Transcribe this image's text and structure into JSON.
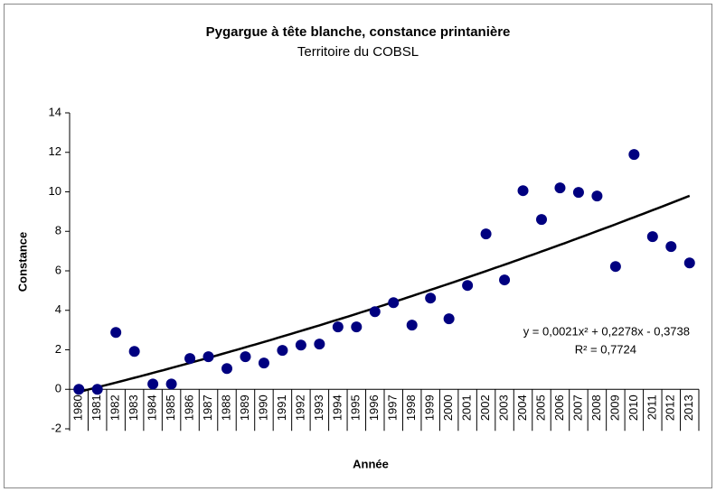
{
  "chart_data": {
    "type": "scatter",
    "title": "Pygargue à tête blanche, constance printanière",
    "subtitle": "Territoire du COBSL",
    "x_label": "Année",
    "y_label": "Constance",
    "categories": [
      "1980",
      "1981",
      "1982",
      "1983",
      "1984",
      "1985",
      "1986",
      "1987",
      "1988",
      "1989",
      "1990",
      "1991",
      "1992",
      "1993",
      "1994",
      "1995",
      "1996",
      "1997",
      "1998",
      "1999",
      "2000",
      "2001",
      "2002",
      "2003",
      "2004",
      "2005",
      "2006",
      "2007",
      "2008",
      "2009",
      "2010",
      "2011",
      "2012",
      "2013"
    ],
    "values": [
      0,
      0,
      2.88,
      1.92,
      0.27,
      0.27,
      1.56,
      1.65,
      1.05,
      1.65,
      1.33,
      1.97,
      2.24,
      2.29,
      3.16,
      3.16,
      3.93,
      4.39,
      3.25,
      4.62,
      3.57,
      5.26,
      7.87,
      5.54,
      10.06,
      8.6,
      10.2,
      9.97,
      9.79,
      6.22,
      11.89,
      7.73,
      7.23,
      6.4
    ],
    "color": "#000080",
    "ylim": [
      -2,
      14
    ],
    "yticks": [
      -2,
      0,
      2,
      4,
      6,
      8,
      10,
      12,
      14
    ],
    "annotations": [
      "y = 0,0021x² + 0,2278x - 0,3738",
      "R² = 0,7724"
    ]
  }
}
